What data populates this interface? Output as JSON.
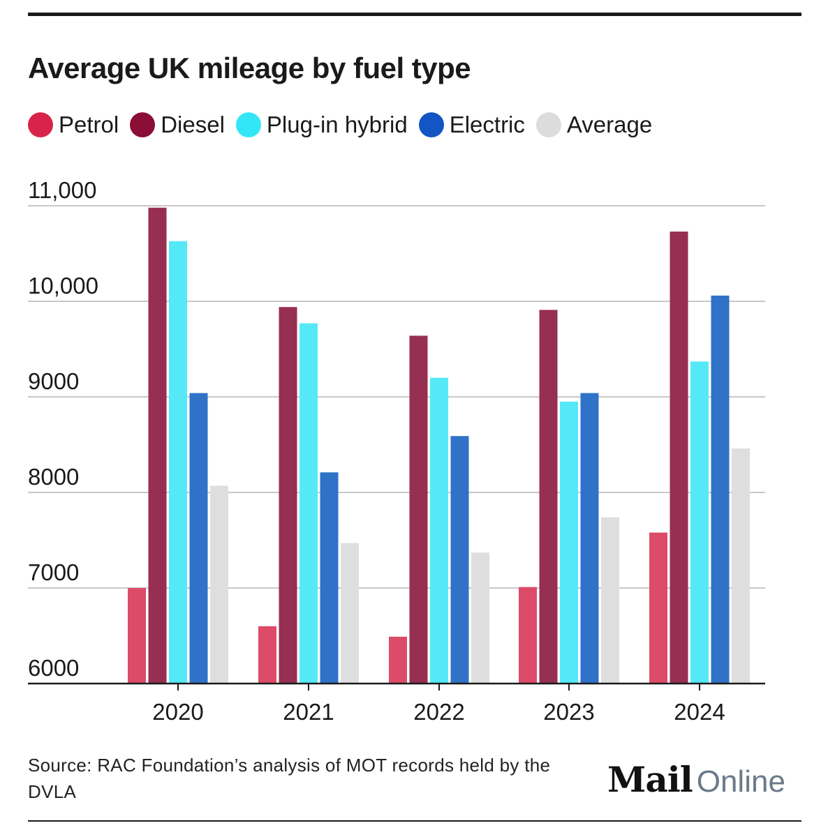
{
  "header": {
    "title": "Average UK mileage by fuel type"
  },
  "chart_data": {
    "type": "bar",
    "title": "Average UK mileage by fuel type",
    "xlabel": "",
    "ylabel": "",
    "ylim": [
      6000,
      11000
    ],
    "grid": true,
    "legend_position": "top-left",
    "y_ticks": [
      {
        "value": 6000,
        "label": "6000"
      },
      {
        "value": 7000,
        "label": "7000"
      },
      {
        "value": 8000,
        "label": "8000"
      },
      {
        "value": 9000,
        "label": "9000"
      },
      {
        "value": 10000,
        "label": "10,000"
      },
      {
        "value": 11000,
        "label": "11,000"
      }
    ],
    "categories": [
      "2020",
      "2021",
      "2022",
      "2023",
      "2024"
    ],
    "series": [
      {
        "name": "Petrol",
        "color": "#dc4b68",
        "legend_color": "#d8244a",
        "values": [
          7000,
          6600,
          6490,
          7010,
          7580
        ]
      },
      {
        "name": "Diesel",
        "color": "#962f52",
        "legend_color": "#8a0e35",
        "values": [
          10980,
          9940,
          9640,
          9910,
          10730
        ]
      },
      {
        "name": "Plug-in hybrid",
        "color": "#55e9f7",
        "legend_color": "#33e6f7",
        "values": [
          10630,
          9770,
          9200,
          8950,
          9370
        ]
      },
      {
        "name": "Electric",
        "color": "#2f72c8",
        "legend_color": "#1256c4",
        "values": [
          9040,
          8210,
          8590,
          9040,
          10060
        ]
      },
      {
        "name": "Average",
        "color": "#dedede",
        "legend_color": "#dcdcdc",
        "values": [
          8070,
          7470,
          7370,
          7740,
          8460
        ]
      }
    ]
  },
  "footer": {
    "source": "Source: RAC Foundation’s analysis of MOT records held by the DVLA",
    "logo_mail": "Mail",
    "logo_online": "Online"
  }
}
